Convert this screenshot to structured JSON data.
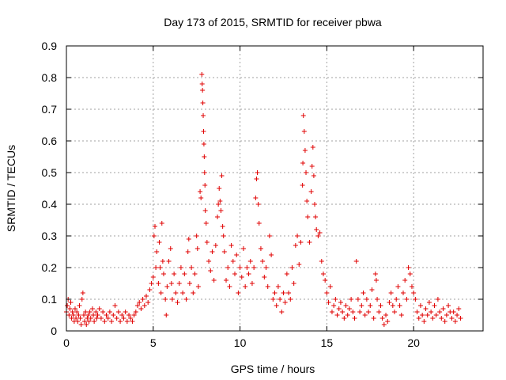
{
  "chart_data": {
    "type": "scatter",
    "title": "Day 173 of 2015, SRMTID for receiver pbwa",
    "xlabel": "GPS time / hours",
    "ylabel": "SRMTID / TECUs",
    "xlim": [
      0,
      24
    ],
    "ylim": [
      0,
      0.9
    ],
    "xticks": [
      0,
      5,
      10,
      15,
      20
    ],
    "yticks": [
      0,
      0.1,
      0.2,
      0.3,
      0.4,
      0.5,
      0.6,
      0.7,
      0.8,
      0.9
    ],
    "ytick_labels": [
      "0",
      "0.1",
      "0.2",
      "0.3",
      "0.4",
      "0.5",
      "0.6",
      "0.7",
      "0.8",
      "0.9"
    ],
    "grid": true,
    "marker": "+",
    "series_color": "#e00000",
    "series": [
      {
        "name": "SRMTID",
        "points": [
          [
            0.0,
            0.06
          ],
          [
            0.05,
            0.08
          ],
          [
            0.1,
            0.1
          ],
          [
            0.15,
            0.05
          ],
          [
            0.2,
            0.07
          ],
          [
            0.25,
            0.09
          ],
          [
            0.3,
            0.04
          ],
          [
            0.35,
            0.06
          ],
          [
            0.4,
            0.05
          ],
          [
            0.45,
            0.03
          ],
          [
            0.5,
            0.07
          ],
          [
            0.55,
            0.04
          ],
          [
            0.6,
            0.06
          ],
          [
            0.65,
            0.03
          ],
          [
            0.7,
            0.05
          ],
          [
            0.75,
            0.08
          ],
          [
            0.8,
            0.04
          ],
          [
            0.85,
            0.02
          ],
          [
            0.9,
            0.1
          ],
          [
            0.95,
            0.12
          ],
          [
            1.0,
            0.05
          ],
          [
            1.05,
            0.03
          ],
          [
            1.1,
            0.06
          ],
          [
            1.15,
            0.02
          ],
          [
            1.2,
            0.04
          ],
          [
            1.25,
            0.05
          ],
          [
            1.3,
            0.03
          ],
          [
            1.35,
            0.06
          ],
          [
            1.4,
            0.04
          ],
          [
            1.5,
            0.07
          ],
          [
            1.55,
            0.05
          ],
          [
            1.6,
            0.03
          ],
          [
            1.7,
            0.06
          ],
          [
            1.75,
            0.04
          ],
          [
            1.8,
            0.05
          ],
          [
            1.9,
            0.07
          ],
          [
            2.0,
            0.04
          ],
          [
            2.1,
            0.06
          ],
          [
            2.2,
            0.03
          ],
          [
            2.3,
            0.05
          ],
          [
            2.4,
            0.04
          ],
          [
            2.5,
            0.06
          ],
          [
            2.6,
            0.03
          ],
          [
            2.7,
            0.05
          ],
          [
            2.8,
            0.08
          ],
          [
            2.9,
            0.04
          ],
          [
            3.0,
            0.06
          ],
          [
            3.1,
            0.03
          ],
          [
            3.2,
            0.05
          ],
          [
            3.3,
            0.04
          ],
          [
            3.4,
            0.06
          ],
          [
            3.5,
            0.03
          ],
          [
            3.6,
            0.05
          ],
          [
            3.7,
            0.04
          ],
          [
            3.8,
            0.03
          ],
          [
            3.9,
            0.05
          ],
          [
            4.0,
            0.06
          ],
          [
            4.1,
            0.08
          ],
          [
            4.2,
            0.09
          ],
          [
            4.3,
            0.07
          ],
          [
            4.4,
            0.1
          ],
          [
            4.5,
            0.08
          ],
          [
            4.6,
            0.11
          ],
          [
            4.7,
            0.09
          ],
          [
            4.8,
            0.13
          ],
          [
            4.9,
            0.15
          ],
          [
            5.0,
            0.17
          ],
          [
            5.05,
            0.3
          ],
          [
            5.1,
            0.33
          ],
          [
            5.15,
            0.2
          ],
          [
            5.2,
            0.25
          ],
          [
            5.3,
            0.15
          ],
          [
            5.35,
            0.28
          ],
          [
            5.4,
            0.2
          ],
          [
            5.45,
            0.12
          ],
          [
            5.5,
            0.34
          ],
          [
            5.55,
            0.22
          ],
          [
            5.6,
            0.18
          ],
          [
            5.7,
            0.1
          ],
          [
            5.75,
            0.05
          ],
          [
            5.8,
            0.14
          ],
          [
            5.9,
            0.22
          ],
          [
            6.0,
            0.26
          ],
          [
            6.05,
            0.15
          ],
          [
            6.1,
            0.1
          ],
          [
            6.2,
            0.18
          ],
          [
            6.3,
            0.12
          ],
          [
            6.4,
            0.09
          ],
          [
            6.5,
            0.15
          ],
          [
            6.6,
            0.2
          ],
          [
            6.7,
            0.12
          ],
          [
            6.8,
            0.18
          ],
          [
            6.9,
            0.1
          ],
          [
            7.0,
            0.25
          ],
          [
            7.05,
            0.29
          ],
          [
            7.1,
            0.15
          ],
          [
            7.2,
            0.2
          ],
          [
            7.3,
            0.12
          ],
          [
            7.4,
            0.18
          ],
          [
            7.5,
            0.3
          ],
          [
            7.55,
            0.26
          ],
          [
            7.6,
            0.14
          ],
          [
            7.7,
            0.44
          ],
          [
            7.75,
            0.42
          ],
          [
            7.8,
            0.81
          ],
          [
            7.82,
            0.78
          ],
          [
            7.84,
            0.76
          ],
          [
            7.86,
            0.72
          ],
          [
            7.88,
            0.68
          ],
          [
            7.9,
            0.63
          ],
          [
            7.92,
            0.59
          ],
          [
            7.94,
            0.55
          ],
          [
            7.96,
            0.5
          ],
          [
            7.98,
            0.46
          ],
          [
            8.0,
            0.38
          ],
          [
            8.05,
            0.34
          ],
          [
            8.1,
            0.28
          ],
          [
            8.2,
            0.22
          ],
          [
            8.3,
            0.19
          ],
          [
            8.4,
            0.25
          ],
          [
            8.5,
            0.16
          ],
          [
            8.6,
            0.27
          ],
          [
            8.7,
            0.36
          ],
          [
            8.75,
            0.4
          ],
          [
            8.8,
            0.45
          ],
          [
            8.85,
            0.41
          ],
          [
            8.9,
            0.38
          ],
          [
            8.95,
            0.49
          ],
          [
            9.0,
            0.33
          ],
          [
            9.05,
            0.3
          ],
          [
            9.1,
            0.25
          ],
          [
            9.2,
            0.16
          ],
          [
            9.3,
            0.2
          ],
          [
            9.4,
            0.14
          ],
          [
            9.5,
            0.27
          ],
          [
            9.6,
            0.22
          ],
          [
            9.7,
            0.18
          ],
          [
            9.8,
            0.24
          ],
          [
            9.9,
            0.12
          ],
          [
            10.0,
            0.2
          ],
          [
            10.1,
            0.17
          ],
          [
            10.2,
            0.26
          ],
          [
            10.3,
            0.14
          ],
          [
            10.4,
            0.2
          ],
          [
            10.5,
            0.18
          ],
          [
            10.6,
            0.22
          ],
          [
            10.7,
            0.15
          ],
          [
            10.8,
            0.2
          ],
          [
            10.9,
            0.42
          ],
          [
            10.95,
            0.48
          ],
          [
            11.0,
            0.5
          ],
          [
            11.05,
            0.4
          ],
          [
            11.1,
            0.34
          ],
          [
            11.2,
            0.26
          ],
          [
            11.3,
            0.22
          ],
          [
            11.4,
            0.17
          ],
          [
            11.5,
            0.2
          ],
          [
            11.6,
            0.14
          ],
          [
            11.7,
            0.3
          ],
          [
            11.8,
            0.24
          ],
          [
            11.9,
            0.1
          ],
          [
            12.0,
            0.12
          ],
          [
            12.1,
            0.08
          ],
          [
            12.2,
            0.14
          ],
          [
            12.3,
            0.1
          ],
          [
            12.4,
            0.06
          ],
          [
            12.5,
            0.12
          ],
          [
            12.6,
            0.09
          ],
          [
            12.7,
            0.18
          ],
          [
            12.8,
            0.12
          ],
          [
            12.9,
            0.1
          ],
          [
            13.0,
            0.2
          ],
          [
            13.1,
            0.15
          ],
          [
            13.2,
            0.27
          ],
          [
            13.3,
            0.3
          ],
          [
            13.4,
            0.21
          ],
          [
            13.5,
            0.28
          ],
          [
            13.6,
            0.46
          ],
          [
            13.62,
            0.53
          ],
          [
            13.65,
            0.68
          ],
          [
            13.7,
            0.63
          ],
          [
            13.75,
            0.57
          ],
          [
            13.8,
            0.5
          ],
          [
            13.85,
            0.41
          ],
          [
            13.9,
            0.36
          ],
          [
            14.0,
            0.28
          ],
          [
            14.1,
            0.44
          ],
          [
            14.15,
            0.52
          ],
          [
            14.2,
            0.58
          ],
          [
            14.25,
            0.49
          ],
          [
            14.3,
            0.4
          ],
          [
            14.35,
            0.36
          ],
          [
            14.4,
            0.32
          ],
          [
            14.5,
            0.3
          ],
          [
            14.6,
            0.31
          ],
          [
            14.7,
            0.22
          ],
          [
            14.8,
            0.18
          ],
          [
            14.9,
            0.16
          ],
          [
            15.0,
            0.12
          ],
          [
            15.1,
            0.09
          ],
          [
            15.2,
            0.14
          ],
          [
            15.3,
            0.06
          ],
          [
            15.4,
            0.08
          ],
          [
            15.5,
            0.1
          ],
          [
            15.6,
            0.05
          ],
          [
            15.7,
            0.07
          ],
          [
            15.8,
            0.09
          ],
          [
            15.9,
            0.06
          ],
          [
            16.0,
            0.04
          ],
          [
            16.1,
            0.08
          ],
          [
            16.2,
            0.05
          ],
          [
            16.3,
            0.07
          ],
          [
            16.4,
            0.1
          ],
          [
            16.5,
            0.06
          ],
          [
            16.6,
            0.04
          ],
          [
            16.7,
            0.22
          ],
          [
            16.8,
            0.1
          ],
          [
            16.9,
            0.06
          ],
          [
            17.0,
            0.08
          ],
          [
            17.1,
            0.12
          ],
          [
            17.2,
            0.05
          ],
          [
            17.3,
            0.1
          ],
          [
            17.4,
            0.06
          ],
          [
            17.5,
            0.08
          ],
          [
            17.6,
            0.13
          ],
          [
            17.7,
            0.04
          ],
          [
            17.8,
            0.18
          ],
          [
            17.85,
            0.16
          ],
          [
            17.9,
            0.1
          ],
          [
            18.0,
            0.06
          ],
          [
            18.1,
            0.08
          ],
          [
            18.2,
            0.04
          ],
          [
            18.3,
            0.02
          ],
          [
            18.4,
            0.05
          ],
          [
            18.5,
            0.03
          ],
          [
            18.6,
            0.09
          ],
          [
            18.7,
            0.12
          ],
          [
            18.8,
            0.08
          ],
          [
            18.9,
            0.06
          ],
          [
            19.0,
            0.1
          ],
          [
            19.1,
            0.14
          ],
          [
            19.2,
            0.08
          ],
          [
            19.3,
            0.05
          ],
          [
            19.4,
            0.12
          ],
          [
            19.5,
            0.16
          ],
          [
            19.6,
            0.1
          ],
          [
            19.7,
            0.2
          ],
          [
            19.8,
            0.18
          ],
          [
            19.9,
            0.14
          ],
          [
            20.0,
            0.12
          ],
          [
            20.1,
            0.1
          ],
          [
            20.2,
            0.06
          ],
          [
            20.3,
            0.04
          ],
          [
            20.4,
            0.08
          ],
          [
            20.5,
            0.05
          ],
          [
            20.6,
            0.03
          ],
          [
            20.7,
            0.07
          ],
          [
            20.8,
            0.05
          ],
          [
            20.9,
            0.09
          ],
          [
            21.0,
            0.06
          ],
          [
            21.1,
            0.04
          ],
          [
            21.2,
            0.08
          ],
          [
            21.3,
            0.05
          ],
          [
            21.4,
            0.1
          ],
          [
            21.5,
            0.06
          ],
          [
            21.6,
            0.04
          ],
          [
            21.7,
            0.07
          ],
          [
            21.8,
            0.03
          ],
          [
            21.9,
            0.05
          ],
          [
            22.0,
            0.08
          ],
          [
            22.1,
            0.06
          ],
          [
            22.2,
            0.04
          ],
          [
            22.3,
            0.06
          ],
          [
            22.4,
            0.03
          ],
          [
            22.5,
            0.05
          ],
          [
            22.6,
            0.07
          ],
          [
            22.7,
            0.04
          ]
        ]
      }
    ]
  }
}
